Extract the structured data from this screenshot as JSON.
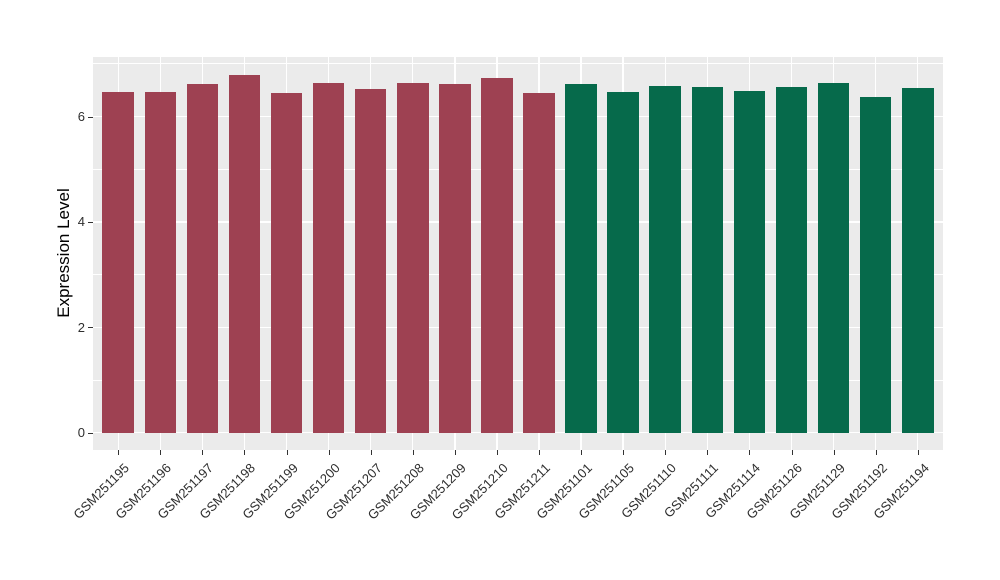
{
  "chart_data": {
    "type": "bar",
    "title": "",
    "xlabel": "",
    "ylabel": "Expression Level",
    "categories": [
      "GSM251195",
      "GSM251196",
      "GSM251197",
      "GSM251198",
      "GSM251199",
      "GSM251200",
      "GSM251207",
      "GSM251208",
      "GSM251209",
      "GSM251210",
      "GSM251211",
      "GSM251101",
      "GSM251105",
      "GSM251110",
      "GSM251111",
      "GSM251114",
      "GSM251126",
      "GSM251129",
      "GSM251192",
      "GSM251194"
    ],
    "values": [
      6.47,
      6.47,
      6.61,
      6.79,
      6.45,
      6.64,
      6.53,
      6.64,
      6.61,
      6.74,
      6.45,
      6.61,
      6.46,
      6.58,
      6.56,
      6.48,
      6.56,
      6.64,
      6.38,
      6.55
    ],
    "groups": [
      "A",
      "A",
      "A",
      "A",
      "A",
      "A",
      "A",
      "A",
      "A",
      "A",
      "A",
      "B",
      "B",
      "B",
      "B",
      "B",
      "B",
      "B",
      "B",
      "B"
    ],
    "group_colors": {
      "A": "#9E4152",
      "B": "#066A4B"
    },
    "y_ticks": [
      0,
      2,
      4,
      6
    ],
    "y_minor_ticks": [
      1,
      3,
      5,
      7
    ],
    "y_range": [
      -0.33,
      7.13
    ],
    "bar_width_fraction": 0.75,
    "legend": "none",
    "grid": "on",
    "panel_background": "#EBEBEB",
    "grid_color": "#FFFFFF",
    "tick_color": "#333333",
    "axis_text_color": "#2e2e2e"
  }
}
